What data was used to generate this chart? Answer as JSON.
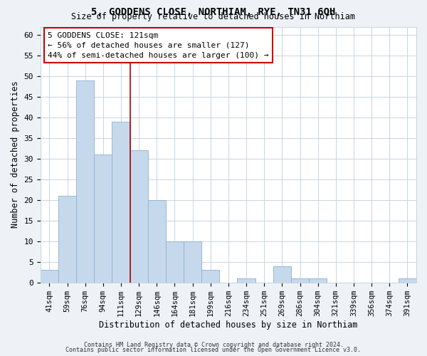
{
  "title": "5, GODDENS CLOSE, NORTHIAM, RYE, TN31 6QH",
  "subtitle": "Size of property relative to detached houses in Northiam",
  "xlabel": "Distribution of detached houses by size in Northiam",
  "ylabel": "Number of detached properties",
  "bin_labels": [
    "41sqm",
    "59sqm",
    "76sqm",
    "94sqm",
    "111sqm",
    "129sqm",
    "146sqm",
    "164sqm",
    "181sqm",
    "199sqm",
    "216sqm",
    "234sqm",
    "251sqm",
    "269sqm",
    "286sqm",
    "304sqm",
    "321sqm",
    "339sqm",
    "356sqm",
    "374sqm",
    "391sqm"
  ],
  "bar_heights": [
    3,
    21,
    49,
    31,
    39,
    32,
    20,
    10,
    10,
    3,
    0,
    1,
    0,
    4,
    1,
    1,
    0,
    0,
    0,
    0,
    1
  ],
  "bar_color": "#c6d9ec",
  "bar_edge_color": "#8ab0d0",
  "marker_label": "5 GODDENS CLOSE: 121sqm",
  "annotation_line1": "← 56% of detached houses are smaller (127)",
  "annotation_line2": "44% of semi-detached houses are larger (100) →",
  "vline_color": "#aa0000",
  "vline_x": 4.5,
  "ylim": [
    0,
    62
  ],
  "yticks": [
    0,
    5,
    10,
    15,
    20,
    25,
    30,
    35,
    40,
    45,
    50,
    55,
    60
  ],
  "footer_line1": "Contains HM Land Registry data © Crown copyright and database right 2024.",
  "footer_line2": "Contains public sector information licensed under the Open Government Licence v3.0.",
  "bg_color": "#eef2f7",
  "plot_bg_color": "#ffffff",
  "grid_color": "#c8d4e0"
}
